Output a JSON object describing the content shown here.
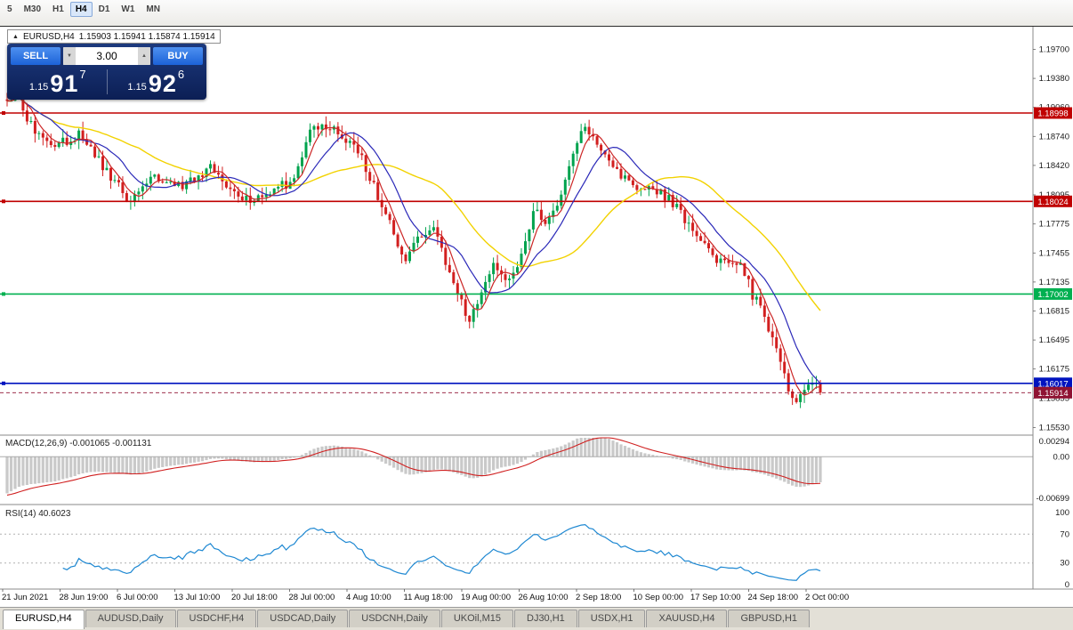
{
  "toolbar": {
    "timeframes": [
      "5",
      "M30",
      "H1",
      "H4",
      "D1",
      "W1",
      "MN"
    ],
    "active_index": 3
  },
  "title": {
    "collapse_icon": "▲",
    "symbol": "EURUSD,H4",
    "ohlc": "1.15903 1.15941 1.15874 1.15914"
  },
  "trade": {
    "sell_label": "SELL",
    "buy_label": "BUY",
    "lot": "3.00",
    "spin_down": "▼",
    "spin_up": "▲",
    "bid": {
      "prefix": "1.15",
      "big": "91",
      "sup": "7"
    },
    "ask": {
      "prefix": "1.15",
      "big": "92",
      "sup": "6"
    }
  },
  "chart_data": {
    "type": "candlestick",
    "symbol": "EURUSD",
    "timeframe": "H4",
    "current_price": 1.15914,
    "candle_count": 205,
    "colors": {
      "bull": "#00a34e",
      "bear": "#d21f1f",
      "ma_fast": "#cc2626",
      "ma_mid": "#2a28b8",
      "ma_slow": "#f2d200",
      "rsi": "#1e88d2",
      "macd_hist": "#c9c9c9",
      "macd_signal": "#d02020",
      "level_red": "#c00000",
      "level_green": "#00c040",
      "level_blue": "#0013bf",
      "price_badge": "#8f1232"
    },
    "ma_periods": {
      "fast": 5,
      "mid": 12,
      "slow": 34
    },
    "price_path_anchors": [
      [
        0,
        1.1908
      ],
      [
        0.013,
        1.1922
      ],
      [
        0.024,
        1.189
      ],
      [
        0.057,
        1.1863
      ],
      [
        0.09,
        1.1878
      ],
      [
        0.117,
        1.1843
      ],
      [
        0.152,
        1.1799
      ],
      [
        0.175,
        1.1828
      ],
      [
        0.214,
        1.1818
      ],
      [
        0.249,
        1.184
      ],
      [
        0.287,
        1.1804
      ],
      [
        0.324,
        1.181
      ],
      [
        0.352,
        1.1828
      ],
      [
        0.377,
        1.1888
      ],
      [
        0.407,
        1.1878
      ],
      [
        0.429,
        1.1863
      ],
      [
        0.451,
        1.1818
      ],
      [
        0.473,
        1.1774
      ],
      [
        0.489,
        1.174
      ],
      [
        0.505,
        1.1764
      ],
      [
        0.522,
        1.1774
      ],
      [
        0.538,
        1.174
      ],
      [
        0.555,
        1.1701
      ],
      [
        0.568,
        1.1672
      ],
      [
        0.582,
        1.1701
      ],
      [
        0.598,
        1.173
      ],
      [
        0.615,
        1.172
      ],
      [
        0.631,
        1.1735
      ],
      [
        0.648,
        1.1796
      ],
      [
        0.664,
        1.1779
      ],
      [
        0.68,
        1.1804
      ],
      [
        0.697,
        1.1858
      ],
      [
        0.708,
        1.1884
      ],
      [
        0.724,
        1.1869
      ],
      [
        0.741,
        1.1849
      ],
      [
        0.757,
        1.1829
      ],
      [
        0.774,
        1.1814
      ],
      [
        0.79,
        1.1819
      ],
      [
        0.806,
        1.1809
      ],
      [
        0.823,
        1.1799
      ],
      [
        0.839,
        1.1774
      ],
      [
        0.856,
        1.1759
      ],
      [
        0.872,
        1.174
      ],
      [
        0.888,
        1.173
      ],
      [
        0.901,
        1.174
      ],
      [
        0.916,
        1.1701
      ],
      [
        0.93,
        1.1677
      ],
      [
        0.945,
        1.1642
      ],
      [
        0.959,
        1.1603
      ],
      [
        0.968,
        1.1578
      ],
      [
        0.979,
        1.1598
      ],
      [
        0.99,
        1.1603
      ],
      [
        1,
        1.15914
      ]
    ],
    "levels": [
      {
        "price": 1.18998,
        "label": "1.18998",
        "color": "#c00000"
      },
      {
        "price": 1.18024,
        "label": "1.18024",
        "color": "#c00000"
      },
      {
        "price": 1.17002,
        "label": "1.17002",
        "color": "#00b050"
      },
      {
        "price": 1.16017,
        "label": "1.16017",
        "color": "#0013bf"
      }
    ],
    "current_price_label": {
      "text": "1.15914",
      "color": "#8f1232"
    },
    "y_ticks": [
      "1.19700",
      "1.19380",
      "1.19060",
      "1.18740",
      "1.18420",
      "1.18095",
      "1.17775",
      "1.17455",
      "1.17135",
      "1.16815",
      "1.16495",
      "1.16175",
      "1.15855",
      "1.15530"
    ],
    "x_ticks": [
      "21 Jun 2021",
      "28 Jun 19:00",
      "6 Jul 00:00",
      "13 Jul 10:00",
      "20 Jul 18:00",
      "28 Jul 00:00",
      "4 Aug 10:00",
      "11 Aug 18:00",
      "19 Aug 00:00",
      "26 Aug 10:00",
      "2 Sep 18:00",
      "10 Sep 00:00",
      "17 Sep 10:00",
      "24 Sep 18:00",
      "2 Oct 00:00"
    ],
    "indicators": {
      "macd": {
        "label": "MACD(12,26,9) -0.001065 -0.001131",
        "axis_max": "0.00294",
        "axis_zero": "0.00",
        "axis_min": "-0.00699"
      },
      "rsi": {
        "label": "RSI(14) 40.6023",
        "axis": [
          "100",
          "70",
          "30",
          "0"
        ],
        "levels": [
          70,
          30
        ]
      }
    }
  },
  "tabs": {
    "items": [
      "EURUSD,H4",
      "AUDUSD,Daily",
      "USDCHF,H4",
      "USDCAD,Daily",
      "USDCNH,Daily",
      "UKOil,M15",
      "DJ30,H1",
      "USDX,H1",
      "XAUUSD,H4",
      "GBPUSD,H1"
    ],
    "active_index": 0
  }
}
